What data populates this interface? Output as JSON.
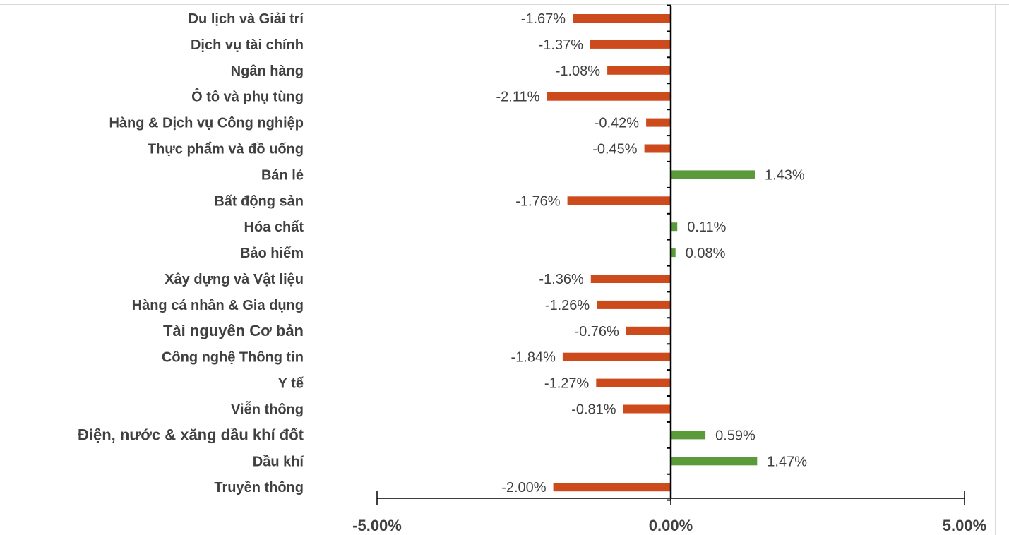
{
  "chart_data": {
    "type": "bar",
    "orientation": "horizontal",
    "title": "",
    "xlabel": "",
    "ylabel": "",
    "xlim": [
      -5,
      5
    ],
    "x_ticks": [
      -5,
      0,
      5
    ],
    "x_tick_labels": [
      "-5.00%",
      "0.00%",
      "5.00%"
    ],
    "grid": false,
    "legend": "none",
    "colors": {
      "positive": "#5b9a3b",
      "negative": "#cc4a1c",
      "axis": "#000000",
      "text": "#404040"
    },
    "categories": [
      "Du lịch và Giải trí",
      "Dịch vụ tài chính",
      "Ngân hàng",
      "Ô tô và phụ tùng",
      "Hàng & Dịch vụ Công nghiệp",
      "Thực phẩm và đồ uống",
      "Bán lẻ",
      "Bất động sản",
      "Hóa chất",
      "Bảo hiểm",
      "Xây dựng và Vật liệu",
      "Hàng cá nhân & Gia dụng",
      "Tài nguyên Cơ bản",
      "Công nghệ Thông tin",
      "Y tế",
      "Viễn thông",
      "Điện, nước & xăng dầu khí đốt",
      "Dầu khí",
      "Truyền thông"
    ],
    "values": [
      -1.67,
      -1.37,
      -1.08,
      -2.11,
      -0.42,
      -0.45,
      1.43,
      -1.76,
      0.11,
      0.08,
      -1.36,
      -1.26,
      -0.76,
      -1.84,
      -1.27,
      -0.81,
      0.59,
      1.47,
      -2.0
    ],
    "value_labels": [
      "-1.67%",
      "-1.37%",
      "-1.08%",
      "-2.11%",
      "-0.42%",
      "-0.45%",
      "1.43%",
      "-1.76%",
      "0.11%",
      "0.08%",
      "-1.36%",
      "-1.26%",
      "-0.76%",
      "-1.84%",
      "-1.27%",
      "-0.81%",
      "0.59%",
      "1.47%",
      "-2.00%"
    ]
  }
}
